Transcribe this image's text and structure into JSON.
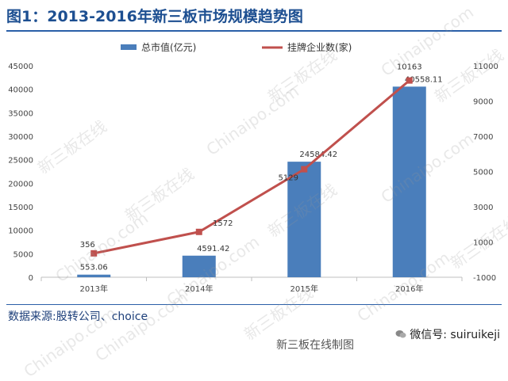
{
  "title": "图1：2013-2016年新三板市场规模趋势图",
  "source": "数据来源:股转公司、choice",
  "footer": {
    "caption": "新三板在线制图",
    "wechat": "微信号: suiruikeji"
  },
  "watermark": [
    "新三板在线",
    "Chinaipo.com"
  ],
  "colors": {
    "bar": "#4a7ebb",
    "line": "#c0504d",
    "title": "#1d4f91"
  },
  "chart_data": {
    "type": "bar",
    "categories": [
      "2013年",
      "2014年",
      "2015年",
      "2016年"
    ],
    "series": [
      {
        "name": "总市值(亿元)",
        "type": "bar",
        "axis": "left",
        "values": [
          553.06,
          4591.42,
          24584.42,
          40558.11
        ]
      },
      {
        "name": "挂牌企业数(家)",
        "type": "line",
        "axis": "right",
        "values": [
          356,
          1572,
          5129,
          10163
        ]
      }
    ],
    "ylim_left": [
      0,
      45000
    ],
    "yticks_left": [
      0,
      5000,
      10000,
      15000,
      20000,
      25000,
      30000,
      35000,
      40000,
      45000
    ],
    "ylim_right": [
      -1000,
      11000
    ],
    "yticks_right": [
      -1000,
      1000,
      3000,
      5000,
      7000,
      9000,
      11000
    ],
    "bar_labels": [
      "553.06",
      "4591.42",
      "24584.42",
      "40558.11"
    ],
    "line_labels": [
      "356",
      "1572",
      "5129",
      "10163"
    ],
    "legend_position": "top",
    "grid": false
  }
}
